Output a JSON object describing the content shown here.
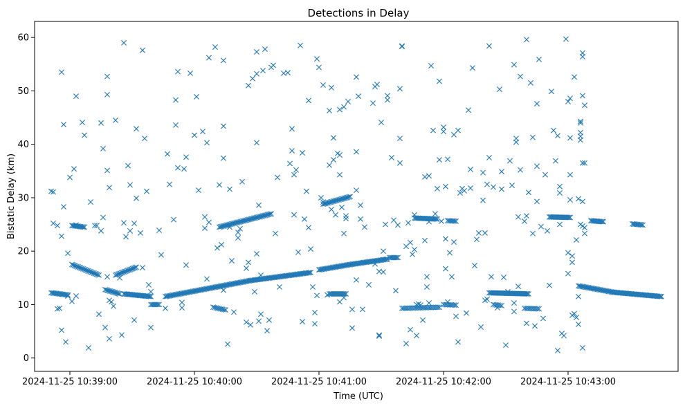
{
  "chart_data": {
    "type": "scatter",
    "title": "Detections in Delay",
    "xlabel": "Time (UTC)",
    "ylabel": "Bistatic Delay (km)",
    "marker": "x",
    "color": "#1f77b4",
    "grid": false,
    "x_unit": "seconds after 2024-11-25 10:38:00 UTC",
    "xlim": [
      43,
      353
    ],
    "ylim": [
      -2.5,
      63
    ],
    "x_ticks": [
      {
        "value": 60,
        "label": "2024-11-25 10:39:00"
      },
      {
        "value": 120,
        "label": "2024-11-25 10:40:00"
      },
      {
        "value": 180,
        "label": "2024-11-25 10:41:00"
      },
      {
        "value": 240,
        "label": "2024-11-25 10:42:00"
      },
      {
        "value": 300,
        "label": "2024-11-25 10:43:00"
      }
    ],
    "y_ticks": [
      0,
      10,
      20,
      30,
      40,
      50,
      60
    ],
    "tracks": [
      {
        "x_start": 51,
        "x_end": 59,
        "y_start": 12.2,
        "y_end": 11.8,
        "step": 0.6
      },
      {
        "x_start": 61,
        "x_end": 74,
        "y_start": 17.5,
        "y_end": 15.5,
        "step": 0.6
      },
      {
        "x_start": 61,
        "x_end": 67,
        "y_start": 24.8,
        "y_end": 24.5,
        "step": 0.6
      },
      {
        "x_start": 77,
        "x_end": 84,
        "y_start": 12.8,
        "y_end": 12.0,
        "step": 0.6
      },
      {
        "x_start": 82,
        "x_end": 92,
        "y_start": 15.5,
        "y_end": 17.0,
        "step": 0.6
      },
      {
        "x_start": 86,
        "x_end": 99,
        "y_start": 12.0,
        "y_end": 11.5,
        "step": 0.6
      },
      {
        "x_start": 99,
        "x_end": 103,
        "y_start": 10.0,
        "y_end": 10.0,
        "step": 0.7
      },
      {
        "x_start": 106,
        "x_end": 147,
        "y_start": 11.5,
        "y_end": 14.5,
        "step": 0.6
      },
      {
        "x_start": 147,
        "x_end": 176,
        "y_start": 14.5,
        "y_end": 16.0,
        "step": 0.6
      },
      {
        "x_start": 129,
        "x_end": 135,
        "y_start": 9.5,
        "y_end": 9.0,
        "step": 0.8
      },
      {
        "x_start": 132,
        "x_end": 157,
        "y_start": 24.5,
        "y_end": 27.0,
        "step": 0.6
      },
      {
        "x_start": 180,
        "x_end": 195,
        "y_start": 16.5,
        "y_end": 17.5,
        "step": 0.6
      },
      {
        "x_start": 195,
        "x_end": 213,
        "y_start": 17.5,
        "y_end": 18.5,
        "step": 0.6
      },
      {
        "x_start": 214,
        "x_end": 218,
        "y_start": 18.8,
        "y_end": 18.8,
        "step": 0.7
      },
      {
        "x_start": 182,
        "x_end": 195,
        "y_start": 28.8,
        "y_end": 30.2,
        "step": 0.6
      },
      {
        "x_start": 185,
        "x_end": 193,
        "y_start": 12.0,
        "y_end": 12.0,
        "step": 0.6
      },
      {
        "x_start": 226,
        "x_end": 237,
        "y_start": 26.2,
        "y_end": 26.0,
        "step": 0.6
      },
      {
        "x_start": 220,
        "x_end": 238,
        "y_start": 9.3,
        "y_end": 9.5,
        "step": 0.8
      },
      {
        "x_start": 240,
        "x_end": 246,
        "y_start": 10.0,
        "y_end": 9.9,
        "step": 0.8
      },
      {
        "x_start": 242,
        "x_end": 246,
        "y_start": 25.7,
        "y_end": 25.6,
        "step": 0.7
      },
      {
        "x_start": 262,
        "x_end": 281,
        "y_start": 12.2,
        "y_end": 12.0,
        "step": 0.6
      },
      {
        "x_start": 264,
        "x_end": 268,
        "y_start": 10.0,
        "y_end": 9.8,
        "step": 0.8
      },
      {
        "x_start": 279,
        "x_end": 286,
        "y_start": 9.3,
        "y_end": 9.2,
        "step": 0.8
      },
      {
        "x_start": 291,
        "x_end": 301,
        "y_start": 26.4,
        "y_end": 26.3,
        "step": 0.6
      },
      {
        "x_start": 305,
        "x_end": 322,
        "y_start": 13.5,
        "y_end": 12.3,
        "step": 0.6
      },
      {
        "x_start": 322,
        "x_end": 345,
        "y_start": 12.3,
        "y_end": 11.5,
        "step": 0.6
      },
      {
        "x_start": 311,
        "x_end": 317,
        "y_start": 25.7,
        "y_end": 25.5,
        "step": 0.6
      },
      {
        "x_start": 331,
        "x_end": 336,
        "y_start": 25.1,
        "y_end": 24.9,
        "step": 0.6
      }
    ],
    "scattered_points": [
      [
        51,
        31.2
      ],
      [
        52,
        31.1
      ],
      [
        52,
        25.2
      ],
      [
        54,
        24.8
      ],
      [
        54,
        9.2
      ],
      [
        55,
        9.3
      ],
      [
        56,
        53.5
      ],
      [
        56,
        22.8
      ],
      [
        56,
        5.2
      ],
      [
        57,
        43.7
      ],
      [
        57,
        28.3
      ],
      [
        58,
        3.0
      ],
      [
        59,
        19.6
      ],
      [
        59,
        11.6
      ],
      [
        60,
        33.8
      ],
      [
        61,
        10.6
      ],
      [
        62,
        35.4
      ],
      [
        63,
        49.0
      ],
      [
        63,
        24.9
      ],
      [
        63,
        11.6
      ],
      [
        66,
        44.1
      ],
      [
        67,
        41.7
      ],
      [
        69,
        1.9
      ],
      [
        70,
        29.2
      ],
      [
        72,
        24.8
      ],
      [
        73,
        24.8
      ],
      [
        74,
        8.2
      ],
      [
        75,
        44.0
      ],
      [
        75,
        23.8
      ],
      [
        76,
        26.3
      ],
      [
        76,
        39.2
      ],
      [
        77,
        5.7
      ],
      [
        78,
        52.7
      ],
      [
        78,
        49.3
      ],
      [
        78,
        35.1
      ],
      [
        78,
        15.2
      ],
      [
        79,
        10.8
      ],
      [
        79,
        3.6
      ],
      [
        79,
        31.9
      ],
      [
        80,
        10.5
      ],
      [
        81,
        9.7
      ],
      [
        82,
        44.5
      ],
      [
        84,
        15.0
      ],
      [
        85,
        4.3
      ],
      [
        86,
        59.0
      ],
      [
        86,
        25.3
      ],
      [
        87,
        22.7
      ],
      [
        88,
        36.0
      ],
      [
        89,
        23.8
      ],
      [
        89,
        32.4
      ],
      [
        91,
        7.1
      ],
      [
        91,
        25.2
      ],
      [
        92,
        42.9
      ],
      [
        92,
        29.9
      ],
      [
        94,
        23.4
      ],
      [
        95,
        57.6
      ],
      [
        95,
        16.9
      ],
      [
        96,
        41.1
      ],
      [
        97,
        31.2
      ],
      [
        98,
        13.7
      ],
      [
        99,
        5.7
      ],
      [
        99,
        12.4
      ],
      [
        103,
        23.9
      ],
      [
        104,
        19.3
      ],
      [
        106,
        9.3
      ],
      [
        107,
        38.2
      ],
      [
        108,
        32.5
      ],
      [
        110,
        25.9
      ],
      [
        111,
        43.6
      ],
      [
        111,
        48.3
      ],
      [
        112,
        53.6
      ],
      [
        112,
        35.6
      ],
      [
        114,
        9.4
      ],
      [
        114,
        10.4
      ],
      [
        115,
        35.4
      ],
      [
        116,
        17.4
      ],
      [
        116,
        37.6
      ],
      [
        118,
        53.3
      ],
      [
        120,
        41.7
      ],
      [
        121,
        48.9
      ],
      [
        122,
        31.4
      ],
      [
        124,
        42.4
      ],
      [
        125,
        24.3
      ],
      [
        125,
        26.4
      ],
      [
        126,
        40.3
      ],
      [
        126,
        14.8
      ],
      [
        127,
        25.4
      ],
      [
        127,
        56.2
      ],
      [
        130,
        58.2
      ],
      [
        131,
        20.6
      ],
      [
        132,
        32.4
      ],
      [
        133,
        21.2
      ],
      [
        134,
        37.4
      ],
      [
        134,
        43.4
      ],
      [
        134,
        55.7
      ],
      [
        134,
        12.7
      ],
      [
        136,
        2.6
      ],
      [
        137,
        24.5
      ],
      [
        137,
        31.6
      ],
      [
        138,
        18.2
      ],
      [
        139,
        8.6
      ],
      [
        141,
        23.5
      ],
      [
        141,
        22.5
      ],
      [
        142,
        24.2
      ],
      [
        143,
        33.0
      ],
      [
        145,
        16.8
      ],
      [
        145,
        6.7
      ],
      [
        146,
        51.0
      ],
      [
        146,
        17.9
      ],
      [
        147,
        6.2
      ],
      [
        148,
        52.3
      ],
      [
        149,
        12.4
      ],
      [
        150,
        40.3
      ],
      [
        150,
        53.2
      ],
      [
        150,
        57.3
      ],
      [
        150,
        19.5
      ],
      [
        151,
        28.6
      ],
      [
        151,
        6.9
      ],
      [
        152,
        15.5
      ],
      [
        152,
        8.2
      ],
      [
        153,
        53.8
      ],
      [
        154,
        57.8
      ],
      [
        155,
        5.1
      ],
      [
        156,
        7.1
      ],
      [
        157,
        54.4
      ],
      [
        158,
        54.8
      ],
      [
        159,
        23.3
      ],
      [
        160,
        33.8
      ],
      [
        161,
        13.3
      ],
      [
        163,
        53.3
      ],
      [
        165,
        53.4
      ],
      [
        166,
        36.4
      ],
      [
        167,
        42.9
      ],
      [
        167,
        38.8
      ],
      [
        168,
        34.3
      ],
      [
        168,
        26.8
      ],
      [
        169,
        35.2
      ],
      [
        170,
        19.8
      ],
      [
        171,
        58.5
      ],
      [
        172,
        6.8
      ],
      [
        172,
        38.4
      ],
      [
        173,
        26.0
      ],
      [
        174,
        31.2
      ],
      [
        175,
        48.2
      ],
      [
        175,
        24.4
      ],
      [
        176,
        20.4
      ],
      [
        177,
        13.3
      ],
      [
        178,
        8.5
      ],
      [
        178,
        6.4
      ],
      [
        179,
        11.7
      ],
      [
        179,
        56.0
      ],
      [
        180,
        54.4
      ],
      [
        181,
        30.0
      ],
      [
        182,
        51.1
      ],
      [
        182,
        29.2
      ],
      [
        184,
        11.8
      ],
      [
        185,
        46.3
      ],
      [
        185,
        36.1
      ],
      [
        186,
        50.6
      ],
      [
        186,
        27.8
      ],
      [
        187,
        37.1
      ],
      [
        187,
        41.2
      ],
      [
        188,
        26.8
      ],
      [
        189,
        38.3
      ],
      [
        190,
        38.0
      ],
      [
        190,
        10.5
      ],
      [
        190,
        46.5
      ],
      [
        190,
        34.3
      ],
      [
        191,
        28.2
      ],
      [
        192,
        11.3
      ],
      [
        192,
        47.0
      ],
      [
        192,
        23.3
      ],
      [
        193,
        26.1
      ],
      [
        193,
        26.6
      ],
      [
        194,
        48.0
      ],
      [
        196,
        9.1
      ],
      [
        196,
        5.6
      ],
      [
        198,
        52.6
      ],
      [
        198,
        31.4
      ],
      [
        198,
        38.6
      ],
      [
        198,
        14.6
      ],
      [
        199,
        49.0
      ],
      [
        200,
        28.6
      ],
      [
        200,
        26.0
      ],
      [
        201,
        9.1
      ],
      [
        202,
        24.5
      ],
      [
        204,
        13.7
      ],
      [
        206,
        47.7
      ],
      [
        207,
        50.8
      ],
      [
        207,
        17.6
      ],
      [
        208,
        51.2
      ],
      [
        209,
        4.1
      ],
      [
        209,
        4.3
      ],
      [
        209,
        16.2
      ],
      [
        210,
        44.1
      ],
      [
        211,
        16.1
      ],
      [
        211,
        20.0
      ],
      [
        212,
        25.0
      ],
      [
        213,
        48.3
      ],
      [
        213,
        49.1
      ],
      [
        215,
        37.5
      ],
      [
        216,
        25.8
      ],
      [
        217,
        12.6
      ],
      [
        218,
        24.9
      ],
      [
        219,
        36.5
      ],
      [
        219,
        41.1
      ],
      [
        219,
        50.4
      ],
      [
        220,
        58.4
      ],
      [
        220,
        58.3
      ],
      [
        222,
        2.7
      ],
      [
        222,
        20.9
      ],
      [
        223,
        25.3
      ],
      [
        224,
        5.3
      ],
      [
        224,
        21.6
      ],
      [
        225,
        19.4
      ],
      [
        226,
        20.3
      ],
      [
        226,
        26.8
      ],
      [
        227,
        4.2
      ],
      [
        227,
        10.0
      ],
      [
        228,
        10.1
      ],
      [
        229,
        9.9
      ],
      [
        230,
        7.1
      ],
      [
        231,
        22.0
      ],
      [
        231,
        33.9
      ],
      [
        232,
        13.3
      ],
      [
        232,
        15.2
      ],
      [
        233,
        10.3
      ],
      [
        233,
        25.5
      ],
      [
        233,
        34.1
      ],
      [
        234,
        54.7
      ],
      [
        235,
        42.6
      ],
      [
        236,
        27.0
      ],
      [
        237,
        31.7
      ],
      [
        238,
        51.8
      ],
      [
        238,
        37.1
      ],
      [
        239,
        25.6
      ],
      [
        240,
        43.2
      ],
      [
        240,
        42.4
      ],
      [
        241,
        22.3
      ],
      [
        241,
        16.7
      ],
      [
        241,
        32.1
      ],
      [
        242,
        10.5
      ],
      [
        242,
        37.2
      ],
      [
        243,
        19.7
      ],
      [
        244,
        15.2
      ],
      [
        245,
        41.8
      ],
      [
        245,
        21.7
      ],
      [
        246,
        7.8
      ],
      [
        247,
        3.0
      ],
      [
        247,
        42.6
      ],
      [
        248,
        30.9
      ],
      [
        249,
        31.7
      ],
      [
        250,
        31.3
      ],
      [
        251,
        8.4
      ],
      [
        252,
        46.4
      ],
      [
        253,
        35.3
      ],
      [
        253,
        31.8
      ],
      [
        254,
        54.3
      ],
      [
        255,
        17.3
      ],
      [
        256,
        22.2
      ],
      [
        257,
        23.4
      ],
      [
        258,
        5.8
      ],
      [
        259,
        29.5
      ],
      [
        259,
        34.7
      ],
      [
        260,
        23.4
      ],
      [
        260,
        10.8
      ],
      [
        261,
        32.5
      ],
      [
        261,
        11.0
      ],
      [
        262,
        58.4
      ],
      [
        262,
        37.5
      ],
      [
        263,
        15.2
      ],
      [
        264,
        32.0
      ],
      [
        266,
        9.4
      ],
      [
        267,
        50.3
      ],
      [
        268,
        34.9
      ],
      [
        268,
        31.6
      ],
      [
        269,
        15.1
      ],
      [
        270,
        2.4
      ],
      [
        271,
        12.4
      ],
      [
        272,
        36.9
      ],
      [
        273,
        32.3
      ],
      [
        274,
        54.9
      ],
      [
        274,
        10.3
      ],
      [
        274,
        8.7
      ],
      [
        275,
        41.1
      ],
      [
        275,
        40.4
      ],
      [
        276,
        26.4
      ],
      [
        276,
        13.4
      ],
      [
        277,
        35.2
      ],
      [
        277,
        52.7
      ],
      [
        279,
        25.6
      ],
      [
        280,
        26.6
      ],
      [
        280,
        6.5
      ],
      [
        280,
        59.6
      ],
      [
        281,
        31.0
      ],
      [
        282,
        51.5
      ],
      [
        283,
        23.3
      ],
      [
        283,
        41.3
      ],
      [
        284,
        6.0
      ],
      [
        285,
        47.6
      ],
      [
        285,
        29.3
      ],
      [
        285,
        35.9
      ],
      [
        286,
        55.9
      ],
      [
        287,
        24.6
      ],
      [
        288,
        7.4
      ],
      [
        289,
        34.3
      ],
      [
        290,
        23.8
      ],
      [
        291,
        13.6
      ],
      [
        292,
        49.9
      ],
      [
        293,
        42.6
      ],
      [
        294,
        36.9
      ],
      [
        295,
        41.6
      ],
      [
        295,
        1.4
      ],
      [
        296,
        30.9
      ],
      [
        296,
        25.0
      ],
      [
        296,
        32.1
      ],
      [
        297,
        4.6
      ],
      [
        298,
        4.2
      ],
      [
        299,
        59.7
      ],
      [
        300,
        48.0
      ],
      [
        300,
        19.7
      ],
      [
        300,
        15.8
      ],
      [
        301,
        48.6
      ],
      [
        301,
        29.6
      ],
      [
        301,
        34.3
      ],
      [
        301,
        41.2
      ],
      [
        302,
        19.1
      ],
      [
        302,
        17.9
      ],
      [
        302,
        8.0
      ],
      [
        303,
        52.6
      ],
      [
        303,
        8.3
      ],
      [
        304,
        22.1
      ],
      [
        304,
        7.6
      ],
      [
        305,
        11.5
      ],
      [
        305,
        6.3
      ],
      [
        305,
        29.8
      ],
      [
        306,
        44.3
      ],
      [
        306,
        42.2
      ],
      [
        306,
        41.5
      ],
      [
        306,
        40.8
      ],
      [
        306,
        44.0
      ],
      [
        306,
        25.0
      ],
      [
        307,
        57.1
      ],
      [
        307,
        56.4
      ],
      [
        307,
        49.1
      ],
      [
        307,
        36.5
      ],
      [
        307,
        29.3
      ],
      [
        307,
        24.7
      ],
      [
        307,
        1.9
      ],
      [
        308,
        47.3
      ],
      [
        308,
        24.4
      ],
      [
        308,
        23.3
      ],
      [
        308,
        36.5
      ]
    ]
  }
}
